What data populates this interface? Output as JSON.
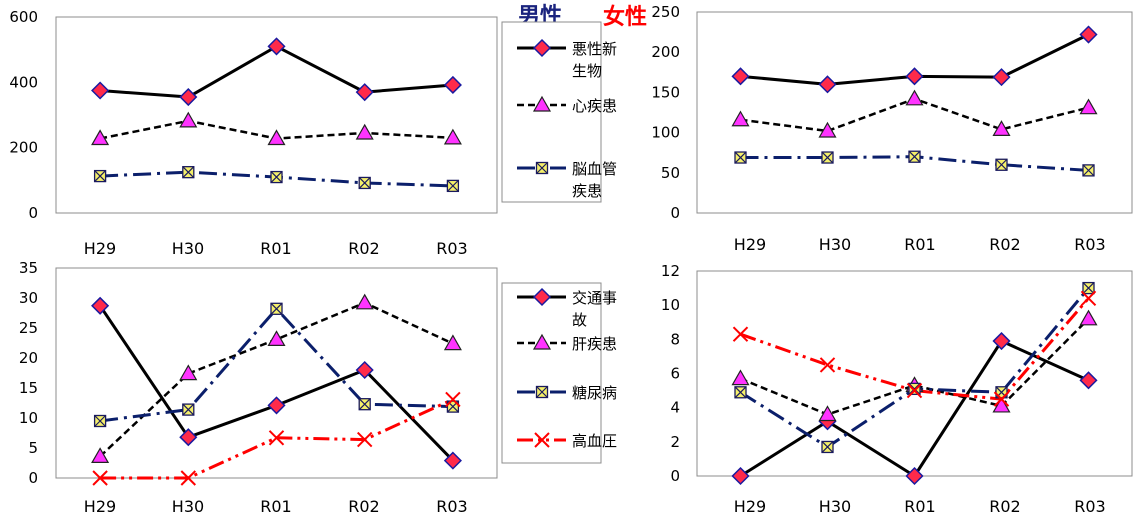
{
  "labels": {
    "male": "男性",
    "female": "女性",
    "male_color": "#1a237e",
    "female_color": "#ff0000"
  },
  "legends": [
    {
      "items": [
        {
          "text": [
            "悪性新",
            "生物"
          ],
          "style": "solid",
          "marker": "diamond"
        },
        {
          "text": [
            "心疾患"
          ],
          "style": "dashed",
          "marker": "triangle"
        },
        {
          "text": [
            "脳血管",
            "疾患"
          ],
          "style": "dashdot",
          "marker": "square"
        }
      ]
    },
    {
      "items": [
        {
          "text": [
            "交通事",
            "故"
          ],
          "style": "solid",
          "marker": "diamond"
        },
        {
          "text": [
            "肝疾患"
          ],
          "style": "dashed",
          "marker": "triangle"
        },
        {
          "text": [
            "糖尿病"
          ],
          "style": "dashdot",
          "marker": "square"
        },
        {
          "text": [
            "高血圧"
          ],
          "style": "dashdotdot",
          "marker": "x"
        }
      ]
    }
  ],
  "chart_data": [
    {
      "type": "line",
      "group": "男性",
      "categories": [
        "H29",
        "H30",
        "R01",
        "R02",
        "R03"
      ],
      "ylim": [
        0,
        600
      ],
      "yticks": [
        "0",
        "200",
        "400",
        "600"
      ],
      "grid": false,
      "series": [
        {
          "name": "悪性新生物",
          "values": [
            375,
            355,
            510,
            370,
            392
          ]
        },
        {
          "name": "心疾患",
          "values": [
            228,
            282,
            228,
            245,
            230
          ]
        },
        {
          "name": "脳血管疾患",
          "values": [
            113,
            125,
            110,
            92,
            83
          ]
        }
      ]
    },
    {
      "type": "line",
      "group": "女性",
      "categories": [
        "H29",
        "H30",
        "R01",
        "R02",
        "R03"
      ],
      "ylim": [
        0,
        250
      ],
      "yticks": [
        "0",
        "50",
        "100",
        "150",
        "200",
        "250"
      ],
      "grid": false,
      "series": [
        {
          "name": "悪性新生物",
          "values": [
            170,
            160,
            170,
            169,
            222
          ]
        },
        {
          "name": "心疾患",
          "values": [
            116,
            102,
            142,
            104,
            131
          ]
        },
        {
          "name": "脳血管疾患",
          "values": [
            69,
            69,
            70,
            60,
            53
          ]
        }
      ]
    },
    {
      "type": "line",
      "group": "男性",
      "categories": [
        "H29",
        "H30",
        "R01",
        "R02",
        "R03"
      ],
      "ylim": [
        0,
        35
      ],
      "yticks": [
        "0",
        "5",
        "10",
        "15",
        "20",
        "25",
        "30",
        "35"
      ],
      "grid": false,
      "series": [
        {
          "name": "交通事故",
          "values": [
            28.7,
            6.8,
            12.1,
            18.0,
            2.9
          ]
        },
        {
          "name": "肝疾患",
          "values": [
            3.6,
            17.4,
            23.1,
            29.2,
            22.4
          ]
        },
        {
          "name": "糖尿病",
          "values": [
            9.5,
            11.4,
            28.2,
            12.3,
            11.9
          ]
        },
        {
          "name": "高血圧",
          "values": [
            0,
            0,
            6.7,
            6.4,
            13.1
          ]
        }
      ]
    },
    {
      "type": "line",
      "group": "女性",
      "categories": [
        "H29",
        "H30",
        "R01",
        "R02",
        "R03"
      ],
      "ylim": [
        0,
        12
      ],
      "yticks": [
        "0",
        "2",
        "4",
        "6",
        "8",
        "10",
        "12"
      ],
      "grid": false,
      "series": [
        {
          "name": "交通事故",
          "values": [
            0,
            3.2,
            0,
            7.9,
            5.6
          ]
        },
        {
          "name": "肝疾患",
          "values": [
            5.7,
            3.6,
            5.3,
            4.1,
            9.2
          ]
        },
        {
          "name": "糖尿病",
          "values": [
            4.9,
            1.7,
            5.1,
            4.9,
            11.0
          ]
        },
        {
          "name": "高血圧",
          "values": [
            8.3,
            6.5,
            5.0,
            4.5,
            10.4
          ]
        }
      ]
    }
  ]
}
